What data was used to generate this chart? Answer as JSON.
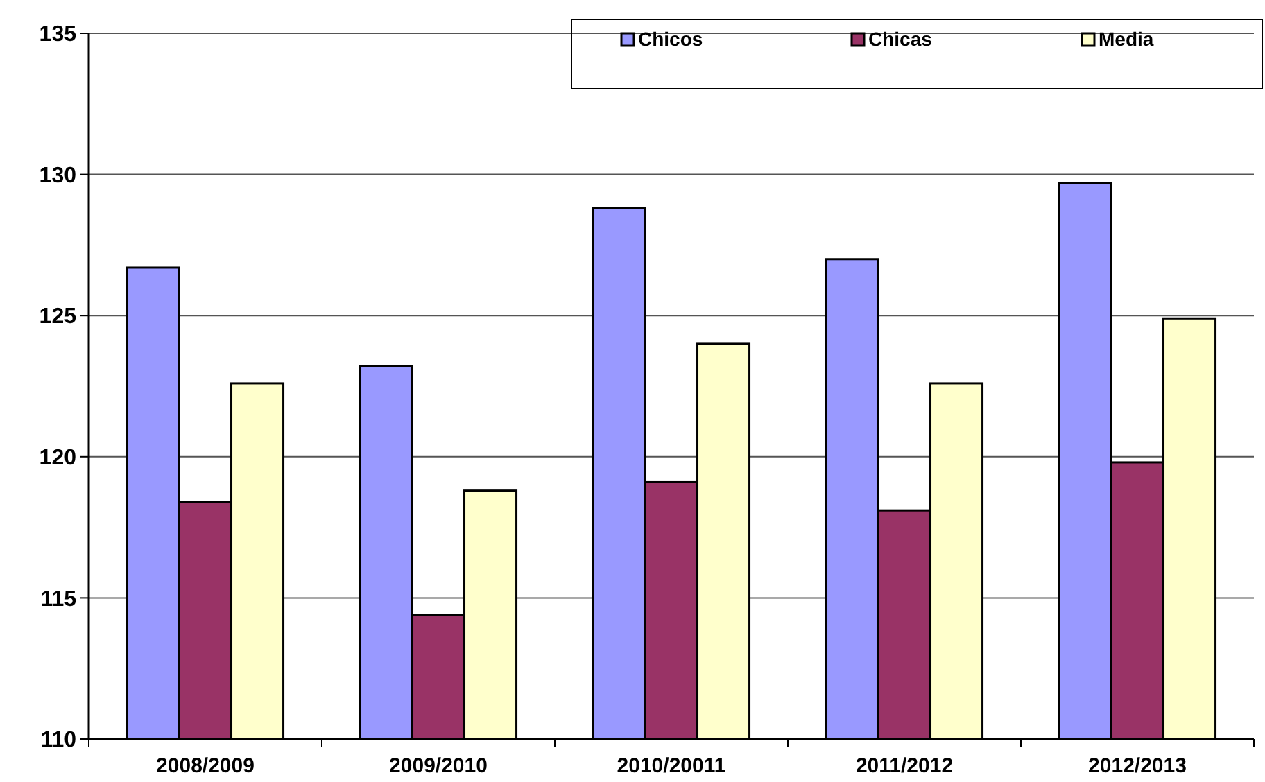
{
  "chart_data": {
    "type": "bar",
    "categories": [
      "2008/2009",
      "2009/2010",
      "2010/20011",
      "2011/2012",
      "2012/2013"
    ],
    "series": [
      {
        "name": "Chicos",
        "color": "#9999ff",
        "values": [
          126.7,
          123.2,
          128.8,
          127.0,
          129.7
        ]
      },
      {
        "name": "Chicas",
        "color": "#993366",
        "values": [
          118.4,
          114.4,
          119.1,
          118.1,
          119.8
        ]
      },
      {
        "name": "Media",
        "color": "#ffffcc",
        "values": [
          122.6,
          118.8,
          124.0,
          122.6,
          124.9
        ]
      }
    ],
    "ylim": [
      110,
      135
    ],
    "yticks": [
      110,
      115,
      120,
      125,
      130,
      135
    ],
    "grid": "y",
    "legend": "top right"
  }
}
